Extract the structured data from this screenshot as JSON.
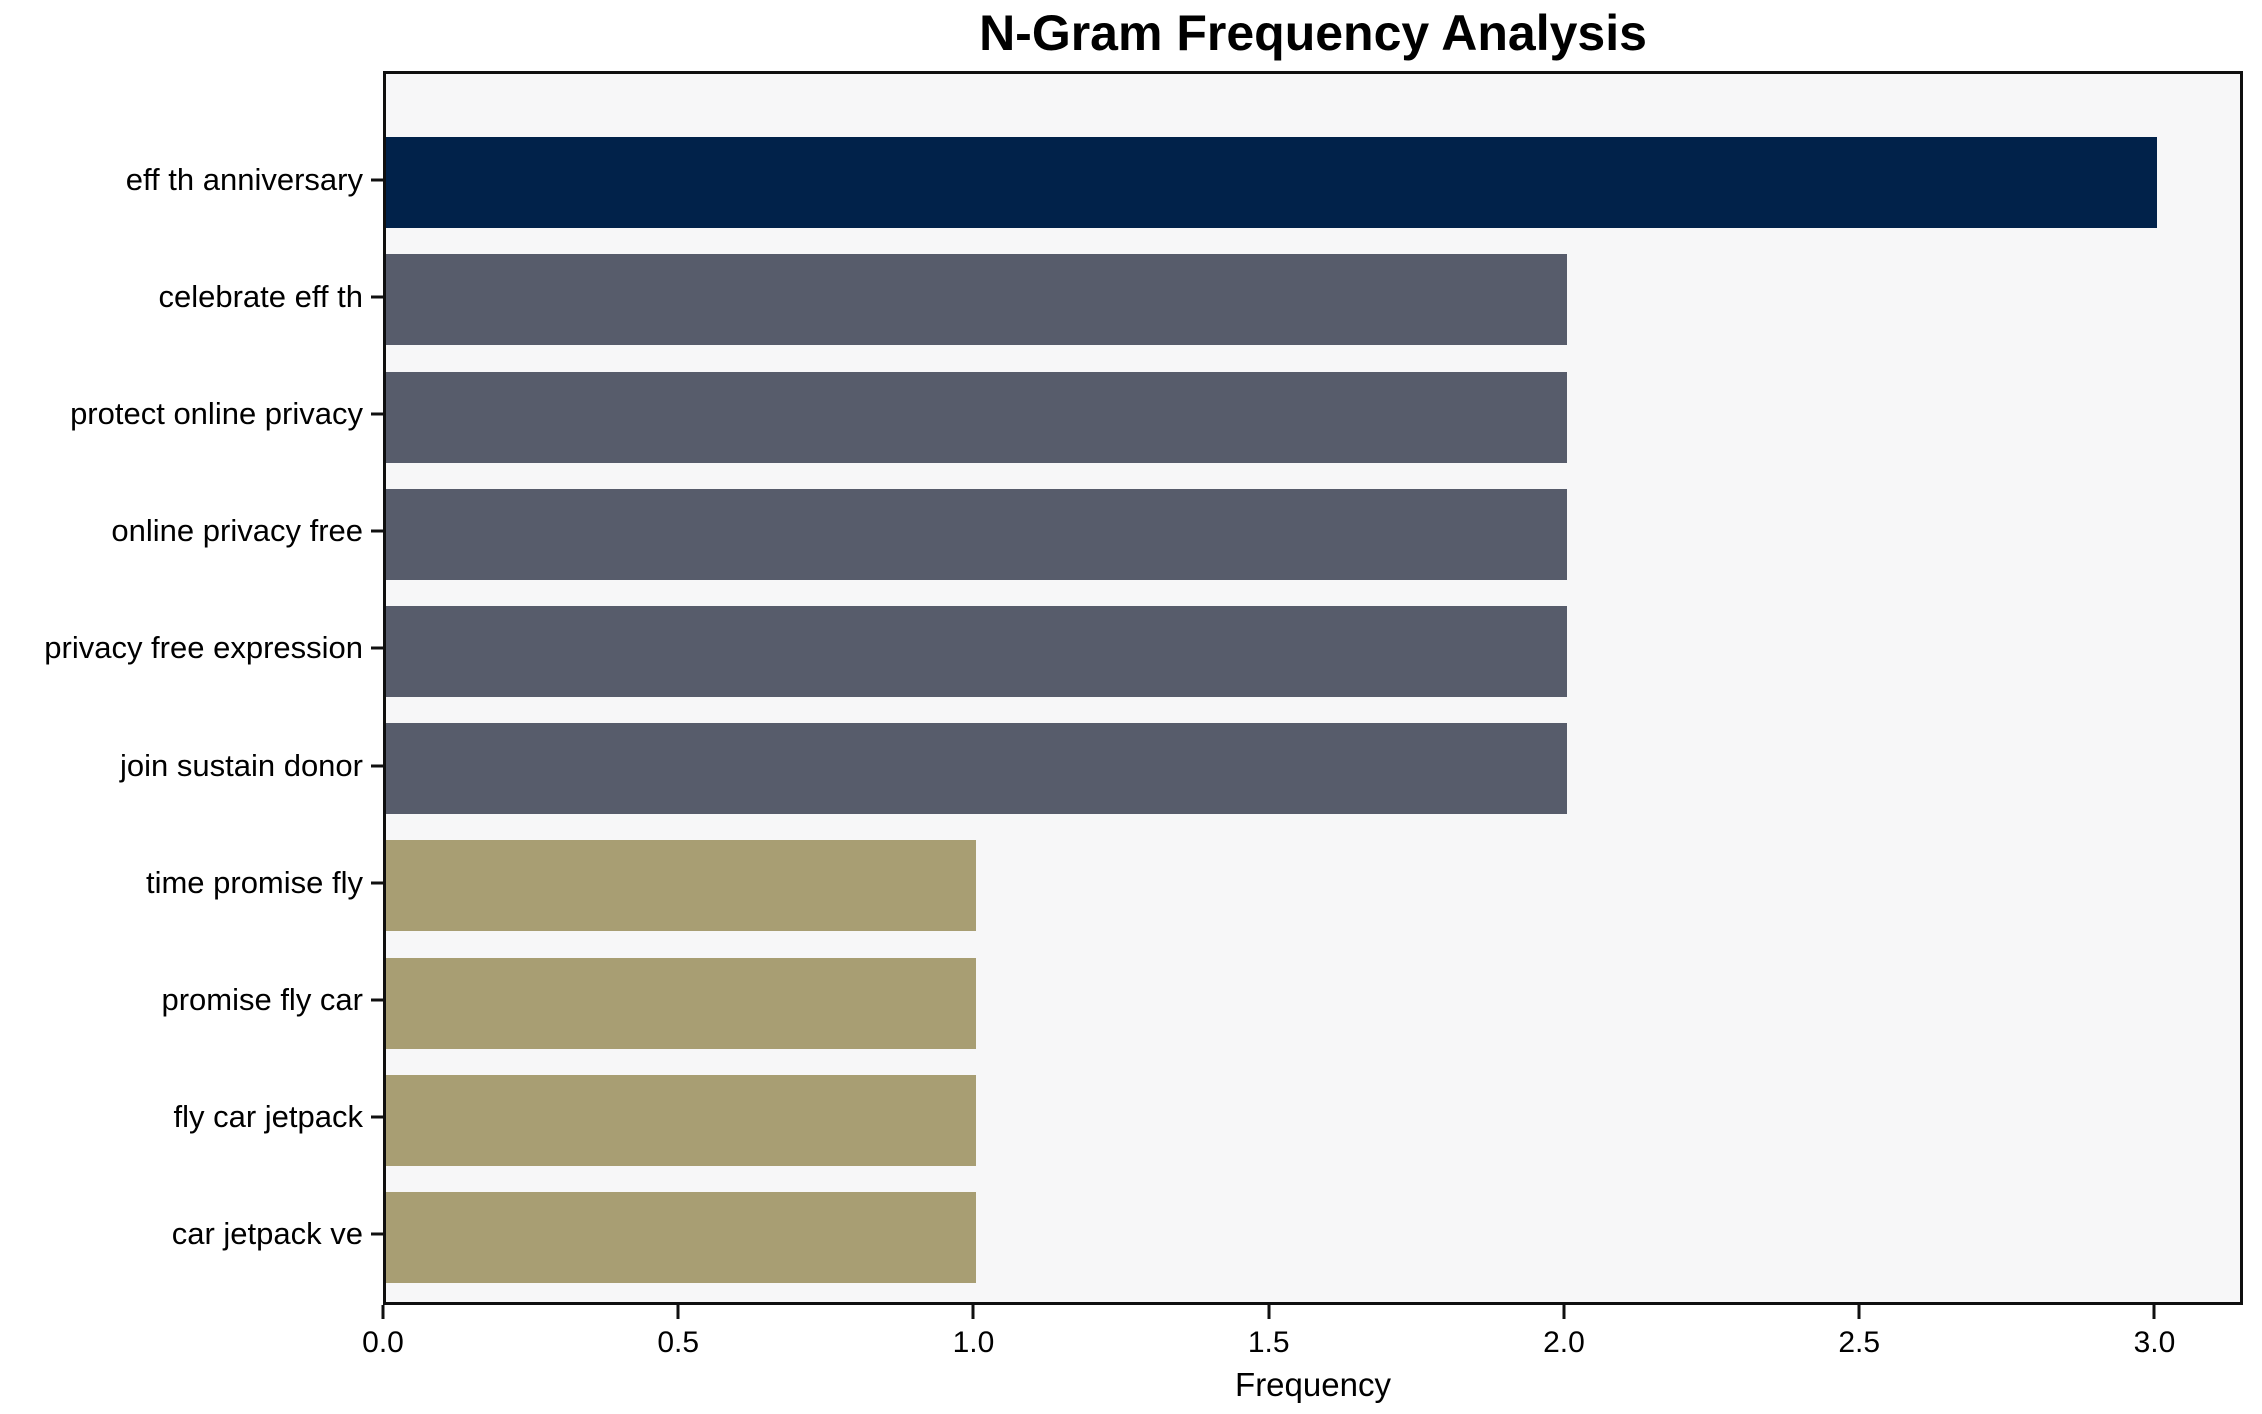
{
  "chart_data": {
    "type": "bar",
    "orientation": "horizontal",
    "title": "N-Gram Frequency Analysis",
    "xlabel": "Frequency",
    "ylabel": "",
    "categories": [
      "eff th anniversary",
      "celebrate eff th",
      "protect online privacy",
      "online privacy free",
      "privacy free expression",
      "join sustain donor",
      "time promise fly",
      "promise fly car",
      "fly car jetpack",
      "car jetpack ve"
    ],
    "values": [
      3,
      2,
      2,
      2,
      2,
      2,
      1,
      1,
      1,
      1
    ],
    "bar_colors": [
      "#01224a",
      "#575c6b",
      "#575c6b",
      "#575c6b",
      "#575c6b",
      "#575c6b",
      "#a89e73",
      "#a89e73",
      "#a89e73",
      "#a89e73"
    ],
    "x_ticks": [
      "0.0",
      "0.5",
      "1.0",
      "1.5",
      "2.0",
      "2.5",
      "3.0"
    ],
    "xlim": [
      0,
      3.15
    ],
    "grid": false,
    "legend": false,
    "plot_background": "#f7f7f8",
    "figure_background": "#ffffff",
    "spine_color": "#0f0f0f"
  }
}
